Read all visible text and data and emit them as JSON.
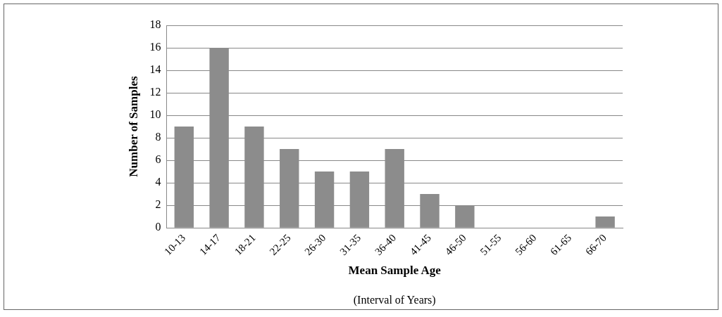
{
  "chart_data": {
    "type": "bar",
    "xlabel": "Mean Sample Age",
    "ylabel": "Number of Samples",
    "annotations": [
      "(Interval of Years)"
    ],
    "categories": [
      "10-13",
      "14-17",
      "18-21",
      "22-25",
      "26-30",
      "31-35",
      "36-40",
      "41-45",
      "46-50",
      "51-55",
      "56-60",
      "61-65",
      "66-70"
    ],
    "values": [
      9,
      16,
      9,
      7,
      5,
      5,
      7,
      3,
      2,
      0,
      0,
      0,
      1
    ],
    "color": "#8c8c8c",
    "ylim": [
      0,
      18
    ],
    "yticks": [
      0,
      2,
      4,
      6,
      8,
      10,
      12,
      14,
      16,
      18
    ],
    "grid": "y"
  }
}
